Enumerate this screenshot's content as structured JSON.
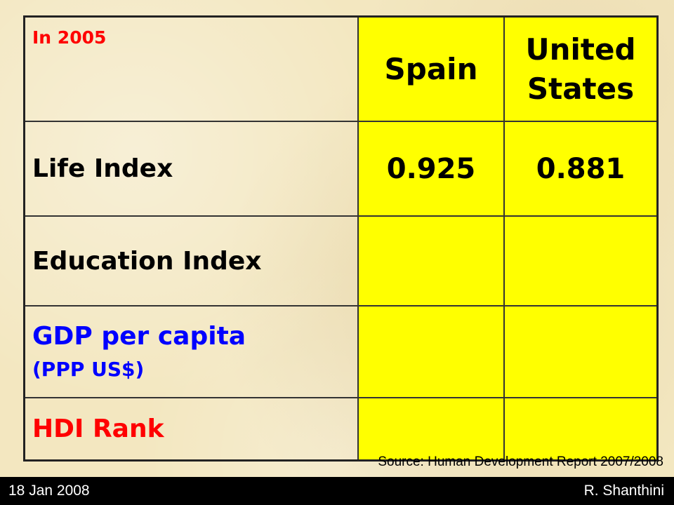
{
  "table": {
    "year_label": "In 2005",
    "columns": [
      "Spain",
      "United States"
    ],
    "us_line1": "United",
    "us_line2": "States",
    "rows": [
      {
        "label": "Life Index",
        "spain": "0.925",
        "us": "0.881"
      },
      {
        "label": "Education Index",
        "spain": "",
        "us": ""
      },
      {
        "label": "GDP per capita",
        "sublabel": "(PPP US$)",
        "spain": "",
        "us": ""
      },
      {
        "label": "HDI Rank",
        "spain": "",
        "us": ""
      }
    ]
  },
  "source": "Source: Human Development Report 2007/2008",
  "footer": {
    "date": "18 Jan 2008",
    "author": "R. Shanthini"
  },
  "colors": {
    "background": "#f3e7c0",
    "cell_highlight": "#ffff00",
    "red_text": "#ff0000",
    "blue_text": "#0000ff",
    "footer_bar": "#000000"
  }
}
